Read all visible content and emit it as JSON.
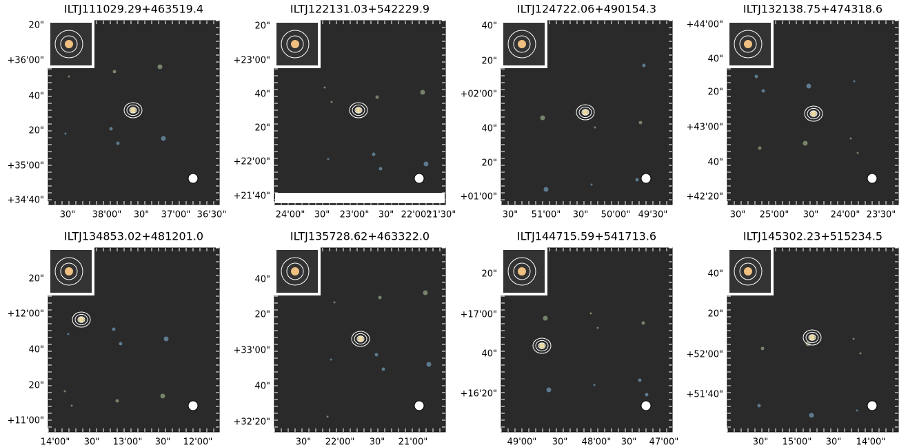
{
  "panels": [
    {
      "title": "ILTJ111029.29+463519.4",
      "y_labels": [
        "20\"",
        "+36'00\"",
        "40\"",
        "20\"",
        "+35'00\"",
        "+34'40\""
      ],
      "x_labels": [
        "30\"",
        "38'00\"",
        "30\"",
        "37'00\"",
        "36'30\""
      ]
    },
    {
      "title": "ILTJ122131.03+542229.9",
      "y_labels": [
        "20\"",
        "+23'00\"",
        "40\"",
        "20\"",
        "+22'00\"",
        "+21'40\""
      ],
      "x_labels": [
        "24'00\"",
        "30\"",
        "23'00\"",
        "30\"",
        "22'00\"",
        "21'30\""
      ]
    },
    {
      "title": "ILTJ124722.06+490154.3",
      "y_labels": [
        "40\"",
        "20\"",
        "+02'00\"",
        "40\"",
        "20\"",
        "+01'00\""
      ],
      "x_labels": [
        "30\"",
        "51'00\"",
        "30\"",
        "50'00\"",
        "49'30\""
      ]
    },
    {
      "title": "ILTJ132138.75+474318.6",
      "y_labels": [
        "+44'00\"",
        "40\"",
        "20\"",
        "+43'00\"",
        "40\"",
        "+42'20\""
      ],
      "x_labels": [
        "30\"",
        "25'00\"",
        "30\"",
        "24'00\"",
        "23'30\""
      ]
    },
    {
      "title": "ILTJ134853.02+481201.0",
      "y_labels": [
        "20\"",
        "+12'00\"",
        "40\"",
        "20\"",
        "+11'00\""
      ],
      "x_labels": [
        "14'00\"",
        "30\"",
        "13'00\"",
        "30\"",
        "12'00\""
      ]
    },
    {
      "title": "ILTJ135728.62+463322.0",
      "y_labels": [
        "40\"",
        "20\"",
        "+33'00\"",
        "40\"",
        "+32'20\""
      ],
      "x_labels": [
        "30\"",
        "22'00\"",
        "30\"",
        "21'00\""
      ]
    },
    {
      "title": "ILTJ144715.59+541713.6",
      "y_labels": [
        "20\"",
        "+17'00\"",
        "40\"",
        "+16'20\""
      ],
      "x_labels": [
        "49'00\"",
        "30\"",
        "48'00\"",
        "30\"",
        "47'00\""
      ]
    },
    {
      "title": "ILTJ145302.23+515234.5",
      "y_labels": [
        "40\"",
        "20\"",
        "+52'00\"",
        "+51'40\""
      ],
      "x_labels": [
        "30\"",
        "15'00\"",
        "30\"",
        "14'00\""
      ]
    }
  ]
}
